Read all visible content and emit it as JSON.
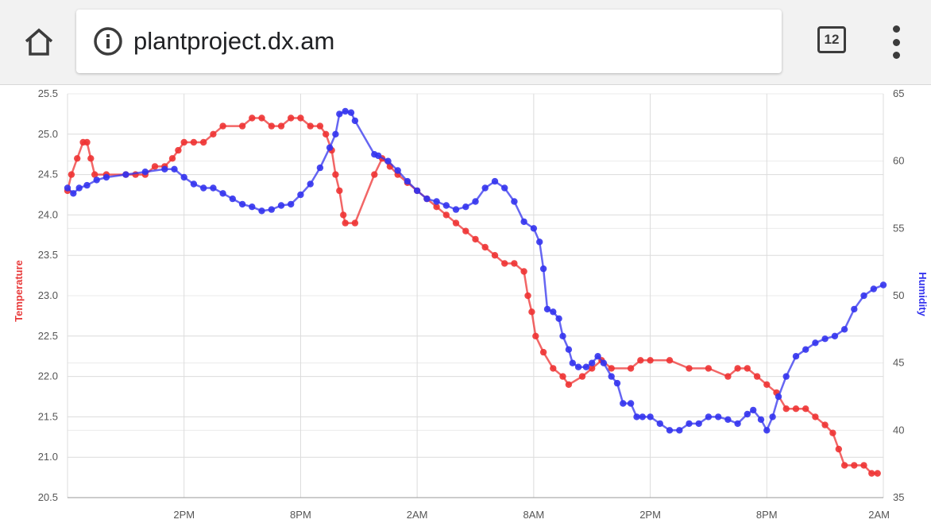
{
  "browser": {
    "url": "plantproject.dx.am",
    "tab_count": "12",
    "icons": {
      "home": "home-icon",
      "info": "info-icon",
      "menu": "kebab-menu-icon"
    }
  },
  "chart_data": {
    "type": "line",
    "title": "",
    "xlabel": "",
    "x_ticks": [
      "2PM",
      "8PM",
      "2AM",
      "8AM",
      "2PM",
      "8PM",
      "2AM"
    ],
    "x_tick_positions_hours": [
      6,
      12,
      18,
      24,
      30,
      36,
      42
    ],
    "xlim_hours": [
      0,
      42
    ],
    "left_axis": {
      "label": "Temperature",
      "ylim": [
        20.5,
        25.5
      ],
      "ticks": [
        "20.5",
        "21.0",
        "21.5",
        "22.0",
        "22.5",
        "23.0",
        "23.5",
        "24.0",
        "24.5",
        "25.0",
        "25.5"
      ],
      "color": "#e83a3a"
    },
    "right_axis": {
      "label": "Humidity",
      "ylim": [
        35,
        65
      ],
      "ticks": [
        "35",
        "40",
        "45",
        "50",
        "55",
        "60",
        "65"
      ],
      "color": "#3333ee"
    },
    "grid": true,
    "series": [
      {
        "name": "Temperature",
        "axis": "left",
        "color": "#ee3333",
        "points": [
          [
            0,
            24.3
          ],
          [
            0.2,
            24.5
          ],
          [
            0.5,
            24.7
          ],
          [
            0.8,
            24.9
          ],
          [
            1.0,
            24.9
          ],
          [
            1.2,
            24.7
          ],
          [
            1.4,
            24.5
          ],
          [
            2.0,
            24.5
          ],
          [
            3.0,
            24.5
          ],
          [
            3.5,
            24.5
          ],
          [
            4.0,
            24.5
          ],
          [
            4.5,
            24.6
          ],
          [
            5.0,
            24.6
          ],
          [
            5.4,
            24.7
          ],
          [
            5.7,
            24.8
          ],
          [
            6.0,
            24.9
          ],
          [
            6.5,
            24.9
          ],
          [
            7.0,
            24.9
          ],
          [
            7.5,
            25.0
          ],
          [
            8.0,
            25.1
          ],
          [
            9.0,
            25.1
          ],
          [
            9.5,
            25.2
          ],
          [
            10.0,
            25.2
          ],
          [
            10.5,
            25.1
          ],
          [
            11.0,
            25.1
          ],
          [
            11.5,
            25.2
          ],
          [
            12.0,
            25.2
          ],
          [
            12.5,
            25.1
          ],
          [
            13.0,
            25.1
          ],
          [
            13.3,
            25.0
          ],
          [
            13.6,
            24.8
          ],
          [
            13.8,
            24.5
          ],
          [
            14.0,
            24.3
          ],
          [
            14.2,
            24.0
          ],
          [
            14.3,
            23.9
          ],
          [
            14.8,
            23.9
          ],
          [
            15.8,
            24.5
          ],
          [
            16.2,
            24.7
          ],
          [
            16.6,
            24.6
          ],
          [
            17.0,
            24.5
          ],
          [
            17.5,
            24.4
          ],
          [
            18.0,
            24.3
          ],
          [
            18.5,
            24.2
          ],
          [
            19.0,
            24.1
          ],
          [
            19.5,
            24.0
          ],
          [
            20.0,
            23.9
          ],
          [
            20.5,
            23.8
          ],
          [
            21.0,
            23.7
          ],
          [
            21.5,
            23.6
          ],
          [
            22.0,
            23.5
          ],
          [
            22.5,
            23.4
          ],
          [
            23.0,
            23.4
          ],
          [
            23.5,
            23.3
          ],
          [
            23.7,
            23.0
          ],
          [
            23.9,
            22.8
          ],
          [
            24.1,
            22.5
          ],
          [
            24.5,
            22.3
          ],
          [
            25.0,
            22.1
          ],
          [
            25.5,
            22.0
          ],
          [
            25.8,
            21.9
          ],
          [
            26.5,
            22.0
          ],
          [
            27.0,
            22.1
          ],
          [
            27.5,
            22.2
          ],
          [
            28.0,
            22.1
          ],
          [
            29.0,
            22.1
          ],
          [
            29.5,
            22.2
          ],
          [
            30.0,
            22.2
          ],
          [
            31.0,
            22.2
          ],
          [
            32.0,
            22.1
          ],
          [
            33.0,
            22.1
          ],
          [
            34.0,
            22.0
          ],
          [
            34.5,
            22.1
          ],
          [
            35.0,
            22.1
          ],
          [
            35.5,
            22.0
          ],
          [
            36.0,
            21.9
          ],
          [
            36.5,
            21.8
          ],
          [
            37.0,
            21.6
          ],
          [
            37.5,
            21.6
          ],
          [
            38.0,
            21.6
          ],
          [
            38.5,
            21.5
          ],
          [
            39.0,
            21.4
          ],
          [
            39.4,
            21.3
          ],
          [
            39.7,
            21.1
          ],
          [
            40.0,
            20.9
          ],
          [
            40.5,
            20.9
          ],
          [
            41.0,
            20.9
          ],
          [
            41.4,
            20.8
          ],
          [
            41.7,
            20.8
          ]
        ]
      },
      {
        "name": "Humidity",
        "axis": "right",
        "color": "#3333ee",
        "points": [
          [
            0,
            58.0
          ],
          [
            0.3,
            57.6
          ],
          [
            0.6,
            58.0
          ],
          [
            1.0,
            58.2
          ],
          [
            1.5,
            58.6
          ],
          [
            2.0,
            58.8
          ],
          [
            3.0,
            59.0
          ],
          [
            4.0,
            59.2
          ],
          [
            5.0,
            59.4
          ],
          [
            5.5,
            59.4
          ],
          [
            6.0,
            58.8
          ],
          [
            6.5,
            58.3
          ],
          [
            7.0,
            58.0
          ],
          [
            7.5,
            58.0
          ],
          [
            8.0,
            57.6
          ],
          [
            8.5,
            57.2
          ],
          [
            9.0,
            56.8
          ],
          [
            9.5,
            56.6
          ],
          [
            10.0,
            56.3
          ],
          [
            10.5,
            56.4
          ],
          [
            11.0,
            56.7
          ],
          [
            11.5,
            56.8
          ],
          [
            12.0,
            57.5
          ],
          [
            12.5,
            58.3
          ],
          [
            13.0,
            59.5
          ],
          [
            13.5,
            61.0
          ],
          [
            13.8,
            62.0
          ],
          [
            14.0,
            63.5
          ],
          [
            14.3,
            63.7
          ],
          [
            14.6,
            63.6
          ],
          [
            14.8,
            63.0
          ],
          [
            15.8,
            60.5
          ],
          [
            16.0,
            60.4
          ],
          [
            16.5,
            60.0
          ],
          [
            17.0,
            59.3
          ],
          [
            17.5,
            58.5
          ],
          [
            18.0,
            57.8
          ],
          [
            18.5,
            57.2
          ],
          [
            19.0,
            57.0
          ],
          [
            19.5,
            56.7
          ],
          [
            20.0,
            56.4
          ],
          [
            20.5,
            56.6
          ],
          [
            21.0,
            57.0
          ],
          [
            21.5,
            58.0
          ],
          [
            22.0,
            58.5
          ],
          [
            22.5,
            58.0
          ],
          [
            23.0,
            57.0
          ],
          [
            23.5,
            55.5
          ],
          [
            24.0,
            55.0
          ],
          [
            24.3,
            54.0
          ],
          [
            24.5,
            52.0
          ],
          [
            24.7,
            49.0
          ],
          [
            25.0,
            48.8
          ],
          [
            25.3,
            48.3
          ],
          [
            25.5,
            47.0
          ],
          [
            25.8,
            46.0
          ],
          [
            26.0,
            45.0
          ],
          [
            26.3,
            44.7
          ],
          [
            26.7,
            44.7
          ],
          [
            27.0,
            45.0
          ],
          [
            27.3,
            45.5
          ],
          [
            27.6,
            45.0
          ],
          [
            28.0,
            44.0
          ],
          [
            28.3,
            43.5
          ],
          [
            28.6,
            42.0
          ],
          [
            29.0,
            42.0
          ],
          [
            29.3,
            41.0
          ],
          [
            29.6,
            41.0
          ],
          [
            30.0,
            41.0
          ],
          [
            30.5,
            40.5
          ],
          [
            31.0,
            40.0
          ],
          [
            31.5,
            40.0
          ],
          [
            32.0,
            40.5
          ],
          [
            32.5,
            40.5
          ],
          [
            33.0,
            41.0
          ],
          [
            33.5,
            41.0
          ],
          [
            34.0,
            40.8
          ],
          [
            34.5,
            40.5
          ],
          [
            35.0,
            41.2
          ],
          [
            35.3,
            41.5
          ],
          [
            35.7,
            40.8
          ],
          [
            36.0,
            40.0
          ],
          [
            36.3,
            41.0
          ],
          [
            36.6,
            42.5
          ],
          [
            37.0,
            44.0
          ],
          [
            37.5,
            45.5
          ],
          [
            38.0,
            46.0
          ],
          [
            38.5,
            46.5
          ],
          [
            39.0,
            46.8
          ],
          [
            39.5,
            47.0
          ],
          [
            40.0,
            47.5
          ],
          [
            40.5,
            49.0
          ],
          [
            41.0,
            50.0
          ],
          [
            41.5,
            50.5
          ],
          [
            42.0,
            50.8
          ]
        ]
      }
    ]
  }
}
